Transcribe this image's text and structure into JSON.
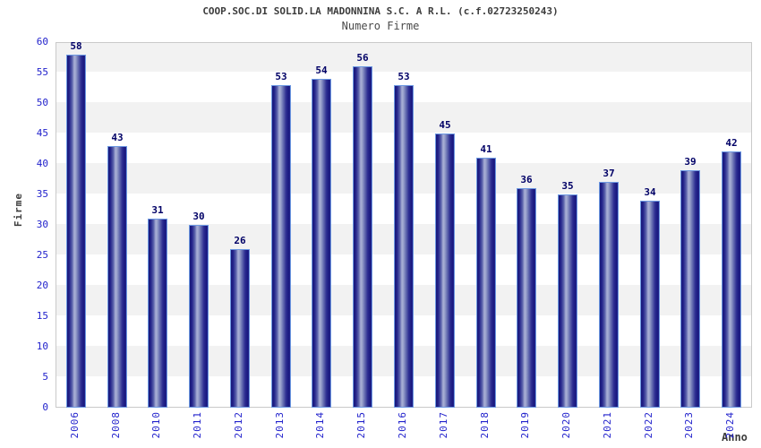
{
  "chart_data": {
    "type": "bar",
    "title": "COOP.SOC.DI SOLID.LA MADONNINA S.C. A R.L. (c.f.02723250243)",
    "subtitle": "Numero Firme",
    "xlabel": "Anno",
    "ylabel": "Firme",
    "categories": [
      "2006",
      "2008",
      "2010",
      "2011",
      "2012",
      "2013",
      "2014",
      "2015",
      "2016",
      "2017",
      "2018",
      "2019",
      "2020",
      "2021",
      "2022",
      "2023",
      "2024"
    ],
    "values": [
      58,
      43,
      31,
      30,
      26,
      53,
      54,
      56,
      53,
      45,
      41,
      36,
      35,
      37,
      34,
      39,
      42
    ],
    "ylim": [
      0,
      60
    ],
    "y_ticks": [
      0,
      5,
      10,
      15,
      20,
      25,
      30,
      35,
      40,
      45,
      50,
      55,
      60
    ],
    "grid": "horizontal-bands",
    "legend": "none"
  },
  "colors": {
    "bar_navy": "#1a1a86",
    "bar_highlight": "#aab0d6",
    "bar_border": "#6d99e2",
    "tick_blue": "#2222cc",
    "value_label_navy": "#000066",
    "band_gray": "#f2f2f2",
    "band_white": "#ffffff",
    "axis_title_gray": "#3c3c3c"
  }
}
